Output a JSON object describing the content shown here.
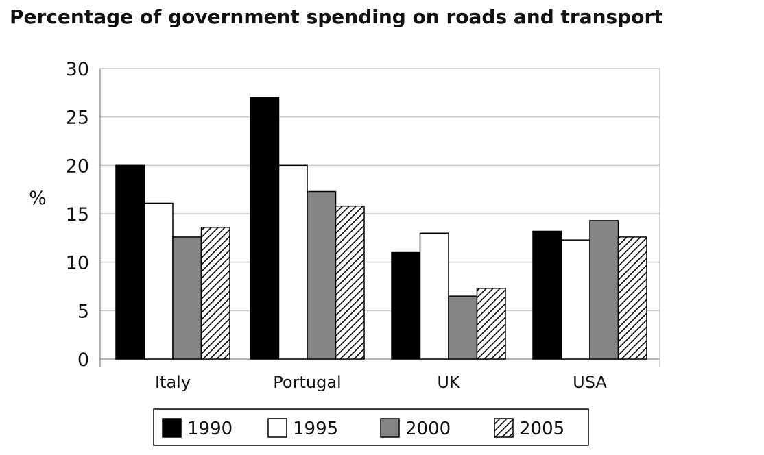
{
  "chart_data": {
    "type": "bar",
    "title": "Percentage of government spending on roads and transport",
    "xlabel": "",
    "ylabel": "%",
    "ylim": [
      0,
      30
    ],
    "yticks": [
      0,
      5,
      10,
      15,
      20,
      25,
      30
    ],
    "grid": true,
    "legend_position": "bottom",
    "categories": [
      "Italy",
      "Portugal",
      "UK",
      "USA"
    ],
    "series": [
      {
        "name": "1990",
        "values": [
          20,
          27,
          11,
          13.2
        ],
        "fill": "black"
      },
      {
        "name": "1995",
        "values": [
          16.1,
          20,
          13,
          12.3
        ],
        "fill": "white"
      },
      {
        "name": "2000",
        "values": [
          12.6,
          17.3,
          6.5,
          14.3
        ],
        "fill": "gray"
      },
      {
        "name": "2005",
        "values": [
          13.6,
          15.8,
          7.3,
          12.6
        ],
        "fill": "hatched"
      }
    ]
  },
  "colors": {
    "black": "#000000",
    "white": "#ffffff",
    "gray": "#858585",
    "grid": "#c8c8c8",
    "axis": "#9a9a9a",
    "border": "#000000"
  }
}
